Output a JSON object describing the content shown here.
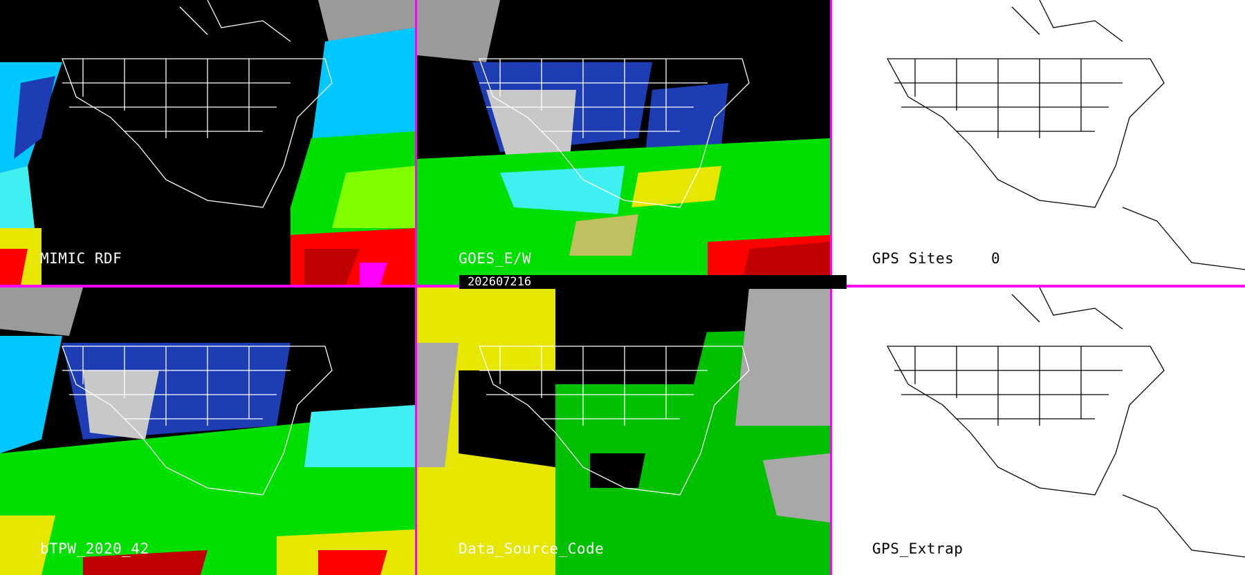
{
  "panels": [
    {
      "id": "mimic-rdf",
      "label": "MIMIC RDF",
      "theme": "dark"
    },
    {
      "id": "goes-ew",
      "label": "GOES_E/W",
      "theme": "dark"
    },
    {
      "id": "gps-sites",
      "label": "GPS Sites",
      "count": "0",
      "theme": "light"
    },
    {
      "id": "btpw",
      "label": "bTPW_2020_42",
      "theme": "dark"
    },
    {
      "id": "data-source",
      "label": "Data_Source_Code",
      "theme": "dark"
    },
    {
      "id": "gps-extrap",
      "label": "GPS_Extrap",
      "theme": "light"
    }
  ],
  "timestamp": "202607216",
  "colors": {
    "divider": "#ff00ff",
    "outline_dark": "#ffffff",
    "outline_light": "#000000"
  },
  "legend_colors": [
    "#000000",
    "#808080",
    "#00008b",
    "#3030c8",
    "#00c8ff",
    "#40f0f0",
    "#00e000",
    "#80ff00",
    "#e6e600",
    "#ffd700",
    "#ff0000",
    "#c00000",
    "#ff00ff"
  ]
}
